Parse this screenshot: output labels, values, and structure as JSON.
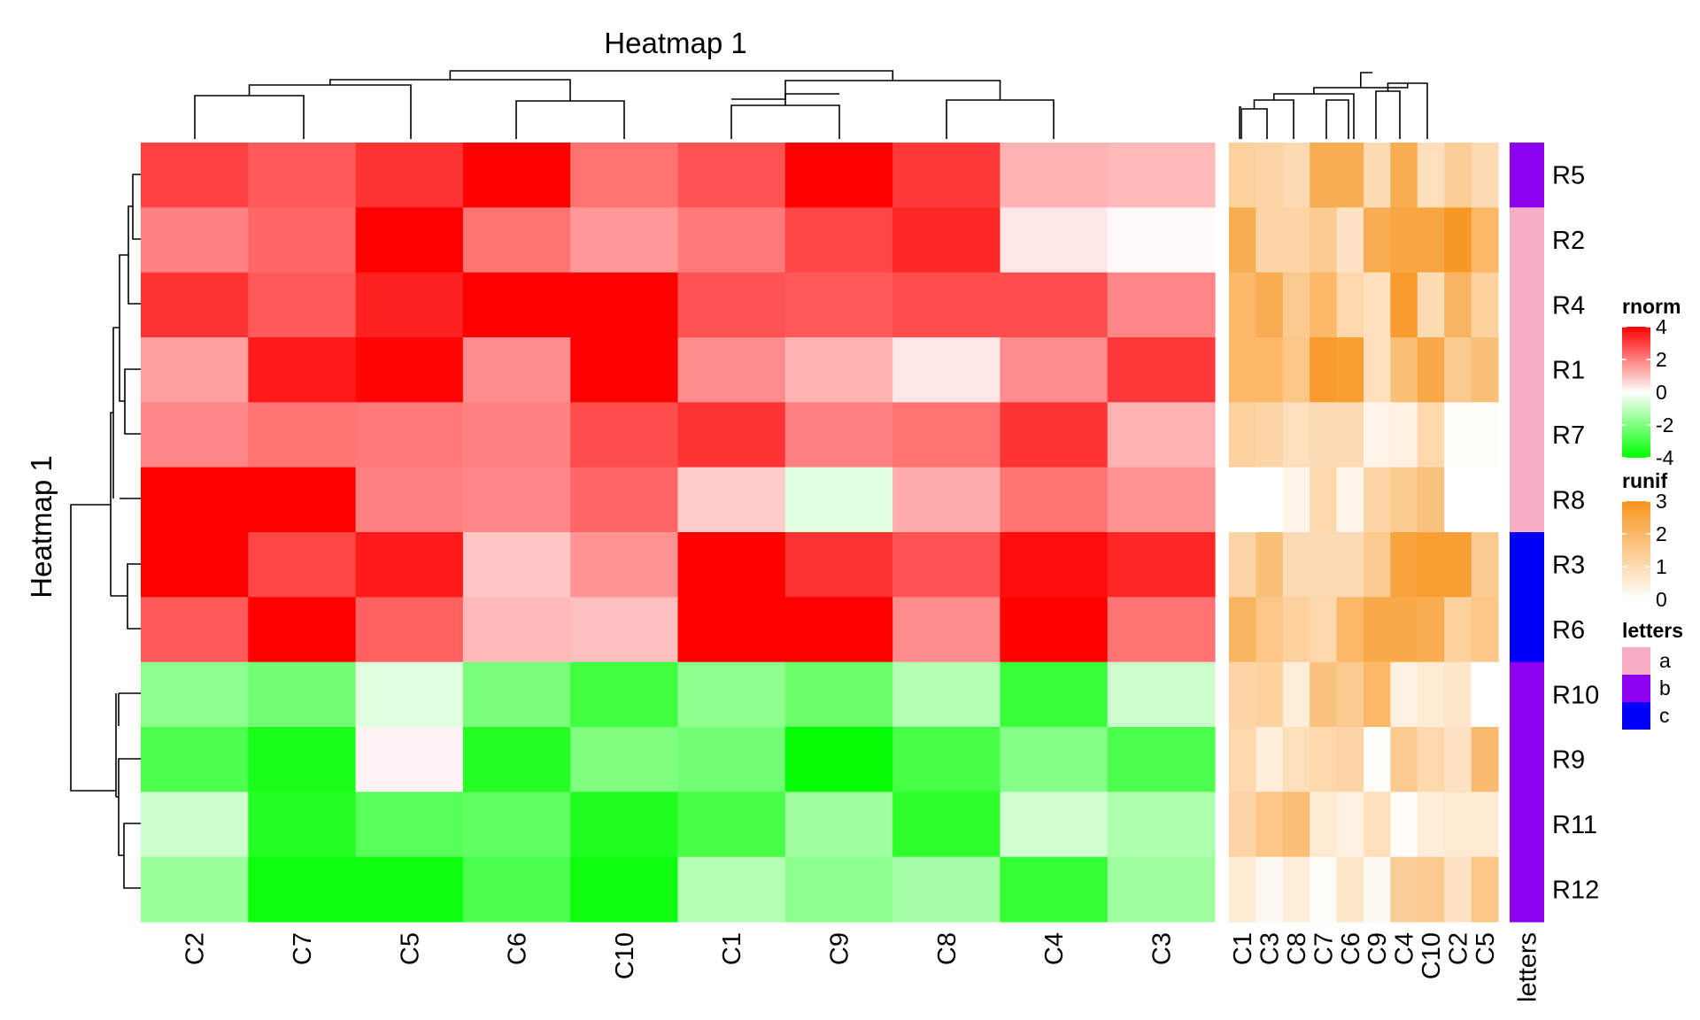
{
  "chart_data": {
    "type": "heatmap",
    "title": "Heatmap 1",
    "row_title": "Heatmap 1",
    "rows": [
      "R5",
      "R2",
      "R4",
      "R1",
      "R7",
      "R8",
      "R3",
      "R6",
      "R10",
      "R9",
      "R11",
      "R12"
    ],
    "main": {
      "columns": [
        "C2",
        "C7",
        "C5",
        "C6",
        "C10",
        "C1",
        "C9",
        "C8",
        "C4",
        "C3"
      ],
      "values": [
        [
          3.0,
          2.6,
          3.2,
          4.0,
          2.2,
          2.7,
          4.0,
          3.1,
          1.2,
          1.1
        ],
        [
          2.0,
          2.4,
          4.0,
          2.2,
          1.6,
          2.1,
          2.9,
          3.4,
          0.4,
          0.1
        ],
        [
          3.2,
          2.6,
          3.5,
          4.0,
          4.0,
          2.7,
          2.6,
          2.8,
          2.8,
          1.9
        ],
        [
          1.5,
          3.6,
          3.9,
          1.8,
          4.0,
          1.8,
          1.2,
          0.4,
          1.8,
          3.1
        ],
        [
          1.9,
          2.2,
          2.1,
          2.0,
          2.8,
          3.2,
          2.0,
          2.2,
          3.2,
          1.2
        ],
        [
          4.0,
          4.0,
          2.0,
          1.9,
          2.4,
          0.8,
          -0.5,
          1.3,
          2.2,
          1.7
        ],
        [
          4.0,
          2.9,
          3.6,
          0.9,
          1.7,
          4.0,
          3.2,
          2.7,
          3.8,
          3.4
        ],
        [
          2.6,
          4.0,
          2.5,
          1.1,
          1.0,
          4.0,
          4.0,
          1.8,
          4.0,
          2.2
        ],
        [
          -1.8,
          -2.2,
          -0.5,
          -2.1,
          -3.0,
          -1.8,
          -2.3,
          -1.2,
          -3.1,
          -0.8
        ],
        [
          -2.8,
          -3.6,
          0.2,
          -3.4,
          -2.0,
          -2.2,
          -3.9,
          -2.9,
          -1.9,
          -2.8
        ],
        [
          -0.8,
          -3.4,
          -2.6,
          -2.5,
          -3.5,
          -2.9,
          -1.5,
          -3.3,
          -0.7,
          -1.3
        ],
        [
          -1.6,
          -3.8,
          -3.8,
          -2.8,
          -3.8,
          -1.2,
          -1.8,
          -1.4,
          -3.2,
          -1.5
        ]
      ]
    },
    "runif": {
      "columns": [
        "C1",
        "C3",
        "C8",
        "C7",
        "C6",
        "C9",
        "C4",
        "C10",
        "C2",
        "C5"
      ],
      "values": [
        [
          1.3,
          1.2,
          1.0,
          2.3,
          2.3,
          1.0,
          2.3,
          0.9,
          1.4,
          1.0
        ],
        [
          2.3,
          1.2,
          1.2,
          1.5,
          0.8,
          2.3,
          2.5,
          2.5,
          2.9,
          2.0
        ],
        [
          2.0,
          2.3,
          1.5,
          2.0,
          1.1,
          0.9,
          2.8,
          1.0,
          2.1,
          1.3
        ],
        [
          2.0,
          2.0,
          1.6,
          2.8,
          2.7,
          0.9,
          1.8,
          2.4,
          1.5,
          1.8
        ],
        [
          1.3,
          1.2,
          0.9,
          1.0,
          1.0,
          0.3,
          0.4,
          1.1,
          0.1,
          0.1
        ],
        [
          0.0,
          0.0,
          0.3,
          1.1,
          0.3,
          1.2,
          1.5,
          1.7,
          0.0,
          0.0
        ],
        [
          1.2,
          1.8,
          1.0,
          1.0,
          1.0,
          1.5,
          2.6,
          2.7,
          2.7,
          1.5
        ],
        [
          2.1,
          1.6,
          1.3,
          1.1,
          2.0,
          2.4,
          2.4,
          2.3,
          1.3,
          1.6
        ],
        [
          1.2,
          1.3,
          0.5,
          1.7,
          1.5,
          2.0,
          0.4,
          0.6,
          0.7,
          0.0
        ],
        [
          1.1,
          0.5,
          0.9,
          1.1,
          1.2,
          0.1,
          1.5,
          1.1,
          0.8,
          1.9
        ],
        [
          1.2,
          1.6,
          1.8,
          0.6,
          0.4,
          0.9,
          0.1,
          0.5,
          0.6,
          0.6
        ],
        [
          0.6,
          0.2,
          0.5,
          0.1,
          0.7,
          0.2,
          1.4,
          1.5,
          0.8,
          1.6
        ]
      ]
    },
    "letters": {
      "label": "letters",
      "values": [
        "b",
        "a",
        "a",
        "a",
        "a",
        "a",
        "c",
        "c",
        "b",
        "b",
        "b",
        "b"
      ]
    },
    "legends": {
      "rnorm": {
        "title": "rnorm",
        "ticks": [
          4,
          2,
          0,
          -2,
          -4
        ],
        "tick_labels": [
          "4",
          "2",
          "0",
          "-2",
          "-4"
        ],
        "colors": [
          "#ff0000",
          "#ffffff",
          "#00ff00"
        ]
      },
      "runif": {
        "title": "runif",
        "ticks": [
          3,
          2,
          1,
          0
        ],
        "tick_labels": [
          "3",
          "2",
          "1",
          "0"
        ],
        "colors": [
          "#f7941d",
          "#ffffff"
        ]
      },
      "letters": {
        "title": "letters",
        "items": [
          {
            "label": "a",
            "color": "#f7aec3"
          },
          {
            "label": "b",
            "color": "#8b00ee"
          },
          {
            "label": "c",
            "color": "#0000fa"
          }
        ]
      }
    }
  }
}
